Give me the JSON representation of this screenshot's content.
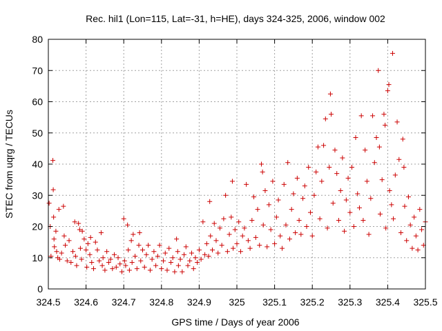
{
  "chart_data": {
    "type": "scatter",
    "title": "Rec. hil1 (Lon=115, Lat=-31, h=HE), days 324-325, 2006, window 002",
    "xlabel": "GPS time / Days of year 2006",
    "ylabel": "STEC from uqrg / TECUs",
    "xlim": [
      324.5,
      325.5
    ],
    "ylim": [
      0,
      80
    ],
    "xticks": [
      324.5,
      324.6,
      324.7,
      324.8,
      324.9,
      325,
      325.1,
      325.2,
      325.3,
      325.4,
      325.5
    ],
    "xtick_labels": [
      "324.5",
      "324.6",
      "324.7",
      "324.8",
      "324.9",
      "325",
      "325.1",
      "325.2",
      "325.3",
      "325.4",
      "325.5"
    ],
    "yticks": [
      0,
      10,
      20,
      30,
      40,
      50,
      60,
      70,
      80
    ],
    "ytick_labels": [
      "0",
      "10",
      "20",
      "30",
      "40",
      "50",
      "60",
      "70",
      "80"
    ],
    "grid": true,
    "marker": "+",
    "color": "#cc0000",
    "series": [
      {
        "points": [
          [
            324.502,
            27.5
          ],
          [
            324.505,
            20.0
          ],
          [
            324.507,
            10.5
          ],
          [
            324.512,
            41.2
          ],
          [
            324.513,
            31.8
          ],
          [
            324.514,
            23.0
          ],
          [
            324.515,
            16.0
          ],
          [
            324.516,
            13.5
          ],
          [
            324.52,
            18.5
          ],
          [
            324.522,
            12.0
          ],
          [
            324.525,
            10.0
          ],
          [
            324.528,
            25.5
          ],
          [
            324.53,
            9.5
          ],
          [
            324.535,
            11.5
          ],
          [
            324.54,
            26.5
          ],
          [
            324.542,
            17.0
          ],
          [
            324.545,
            14.0
          ],
          [
            324.55,
            9.0
          ],
          [
            324.555,
            15.5
          ],
          [
            324.56,
            8.5
          ],
          [
            324.565,
            12.0
          ],
          [
            324.57,
            21.5
          ],
          [
            324.572,
            10.5
          ],
          [
            324.575,
            7.5
          ],
          [
            324.58,
            21.0
          ],
          [
            324.583,
            19.0
          ],
          [
            324.585,
            13.0
          ],
          [
            324.588,
            9.5
          ],
          [
            324.59,
            18.5
          ],
          [
            324.595,
            16.0
          ],
          [
            324.6,
            12.5
          ],
          [
            324.602,
            7.0
          ],
          [
            324.605,
            14.5
          ],
          [
            324.61,
            11.0
          ],
          [
            324.612,
            16.5
          ],
          [
            324.615,
            8.5
          ],
          [
            324.62,
            6.5
          ],
          [
            324.625,
            15.0
          ],
          [
            324.63,
            12.5
          ],
          [
            324.635,
            9.0
          ],
          [
            324.64,
            18.0
          ],
          [
            324.643,
            7.5
          ],
          [
            324.645,
            10.0
          ],
          [
            324.65,
            6.0
          ],
          [
            324.655,
            12.0
          ],
          [
            324.66,
            8.5
          ],
          [
            324.665,
            9.5
          ],
          [
            324.67,
            6.5
          ],
          [
            324.675,
            11.0
          ],
          [
            324.68,
            7.0
          ],
          [
            324.685,
            10.0
          ],
          [
            324.69,
            8.0
          ],
          [
            324.695,
            5.5
          ],
          [
            324.7,
            22.5
          ],
          [
            324.702,
            9.0
          ],
          [
            324.705,
            7.5
          ],
          [
            324.71,
            20.5
          ],
          [
            324.712,
            12.5
          ],
          [
            324.715,
            6.0
          ],
          [
            324.72,
            15.5
          ],
          [
            324.722,
            8.5
          ],
          [
            324.725,
            17.5
          ],
          [
            324.73,
            10.5
          ],
          [
            324.735,
            6.5
          ],
          [
            324.74,
            14.0
          ],
          [
            324.742,
            18.0
          ],
          [
            324.745,
            9.0
          ],
          [
            324.75,
            12.5
          ],
          [
            324.755,
            7.0
          ],
          [
            324.76,
            11.0
          ],
          [
            324.765,
            14.0
          ],
          [
            324.77,
            6.0
          ],
          [
            324.775,
            9.5
          ],
          [
            324.78,
            12.0
          ],
          [
            324.785,
            7.5
          ],
          [
            324.79,
            10.5
          ],
          [
            324.795,
            14.0
          ],
          [
            324.8,
            6.5
          ],
          [
            324.805,
            9.0
          ],
          [
            324.81,
            11.5
          ],
          [
            324.815,
            6.0
          ],
          [
            324.82,
            13.0
          ],
          [
            324.825,
            8.5
          ],
          [
            324.83,
            10.0
          ],
          [
            324.835,
            5.5
          ],
          [
            324.84,
            16.0
          ],
          [
            324.843,
            12.0
          ],
          [
            324.845,
            7.5
          ],
          [
            324.85,
            9.5
          ],
          [
            324.855,
            5.5
          ],
          [
            324.86,
            11.0
          ],
          [
            324.865,
            13.5
          ],
          [
            324.87,
            7.5
          ],
          [
            324.875,
            9.0
          ],
          [
            324.88,
            11.5
          ],
          [
            324.885,
            6.5
          ],
          [
            324.89,
            10.0
          ],
          [
            324.895,
            8.5
          ],
          [
            324.9,
            12.5
          ],
          [
            324.905,
            9.5
          ],
          [
            324.91,
            21.5
          ],
          [
            324.915,
            11.0
          ],
          [
            324.92,
            14.5
          ],
          [
            324.925,
            10.5
          ],
          [
            324.928,
            28.0
          ],
          [
            324.93,
            17.0
          ],
          [
            324.935,
            12.5
          ],
          [
            324.94,
            21.0
          ],
          [
            324.945,
            15.5
          ],
          [
            324.95,
            11.5
          ],
          [
            324.955,
            19.5
          ],
          [
            324.96,
            14.0
          ],
          [
            324.965,
            22.5
          ],
          [
            324.97,
            30.0
          ],
          [
            324.975,
            12.0
          ],
          [
            324.98,
            17.5
          ],
          [
            324.985,
            23.0
          ],
          [
            324.988,
            34.5
          ],
          [
            324.99,
            13.0
          ],
          [
            324.995,
            19.0
          ],
          [
            325.0,
            14.5
          ],
          [
            325.005,
            21.5
          ],
          [
            325.01,
            12.0
          ],
          [
            325.015,
            17.0
          ],
          [
            325.02,
            19.5
          ],
          [
            325.025,
            33.5
          ],
          [
            325.03,
            15.5
          ],
          [
            325.035,
            13.0
          ],
          [
            325.04,
            22.0
          ],
          [
            325.045,
            29.5
          ],
          [
            325.05,
            16.5
          ],
          [
            325.055,
            25.5
          ],
          [
            325.06,
            14.0
          ],
          [
            325.065,
            40.0
          ],
          [
            325.068,
            37.5
          ],
          [
            325.07,
            20.5
          ],
          [
            325.075,
            31.5
          ],
          [
            325.08,
            13.5
          ],
          [
            325.085,
            27.0
          ],
          [
            325.09,
            19.0
          ],
          [
            325.095,
            34.5
          ],
          [
            325.1,
            14.5
          ],
          [
            325.105,
            23.0
          ],
          [
            325.11,
            28.5
          ],
          [
            325.115,
            17.0
          ],
          [
            325.12,
            13.0
          ],
          [
            325.125,
            33.5
          ],
          [
            325.13,
            20.5
          ],
          [
            325.135,
            40.5
          ],
          [
            325.14,
            16.0
          ],
          [
            325.145,
            25.5
          ],
          [
            325.15,
            30.5
          ],
          [
            325.155,
            18.0
          ],
          [
            325.16,
            35.5
          ],
          [
            325.165,
            22.0
          ],
          [
            325.17,
            17.5
          ],
          [
            325.175,
            29.0
          ],
          [
            325.18,
            33.0
          ],
          [
            325.185,
            20.0
          ],
          [
            325.19,
            39.0
          ],
          [
            325.195,
            24.5
          ],
          [
            325.2,
            17.0
          ],
          [
            325.205,
            30.0
          ],
          [
            325.21,
            37.5
          ],
          [
            325.215,
            45.5
          ],
          [
            325.22,
            22.5
          ],
          [
            325.225,
            34.5
          ],
          [
            325.23,
            46.0
          ],
          [
            325.235,
            54.5
          ],
          [
            325.24,
            19.5
          ],
          [
            325.245,
            39.0
          ],
          [
            325.248,
            62.5
          ],
          [
            325.25,
            56.0
          ],
          [
            325.255,
            27.5
          ],
          [
            325.26,
            44.5
          ],
          [
            325.265,
            37.0
          ],
          [
            325.27,
            22.0
          ],
          [
            325.275,
            31.5
          ],
          [
            325.28,
            42.0
          ],
          [
            325.285,
            18.5
          ],
          [
            325.29,
            28.5
          ],
          [
            325.295,
            35.5
          ],
          [
            325.3,
            24.5
          ],
          [
            325.305,
            39.0
          ],
          [
            325.31,
            20.0
          ],
          [
            325.315,
            48.5
          ],
          [
            325.32,
            30.5
          ],
          [
            325.325,
            26.0
          ],
          [
            325.33,
            55.5
          ],
          [
            325.335,
            22.0
          ],
          [
            325.34,
            44.5
          ],
          [
            325.345,
            34.5
          ],
          [
            325.35,
            17.5
          ],
          [
            325.355,
            29.0
          ],
          [
            325.36,
            55.5
          ],
          [
            325.365,
            40.5
          ],
          [
            325.37,
            48.5
          ],
          [
            325.375,
            70.0
          ],
          [
            325.378,
            45.5
          ],
          [
            325.38,
            24.0
          ],
          [
            325.385,
            35.0
          ],
          [
            325.39,
            56.0
          ],
          [
            325.393,
            52.5
          ],
          [
            325.395,
            19.5
          ],
          [
            325.4,
            63.5
          ],
          [
            325.403,
            65.5
          ],
          [
            325.405,
            31.5
          ],
          [
            325.41,
            27.0
          ],
          [
            325.413,
            75.5
          ],
          [
            325.415,
            22.5
          ],
          [
            325.42,
            36.5
          ],
          [
            325.425,
            53.5
          ],
          [
            325.43,
            41.5
          ],
          [
            325.435,
            18.0
          ],
          [
            325.44,
            48.0
          ],
          [
            325.443,
            39.0
          ],
          [
            325.445,
            26.5
          ],
          [
            325.45,
            15.5
          ],
          [
            325.455,
            29.5
          ],
          [
            325.46,
            20.5
          ],
          [
            325.465,
            13.0
          ],
          [
            325.47,
            23.0
          ],
          [
            325.475,
            17.0
          ],
          [
            325.48,
            12.5
          ],
          [
            325.485,
            25.5
          ],
          [
            325.49,
            19.0
          ],
          [
            325.495,
            14.0
          ],
          [
            325.5,
            21.5
          ]
        ]
      }
    ]
  }
}
